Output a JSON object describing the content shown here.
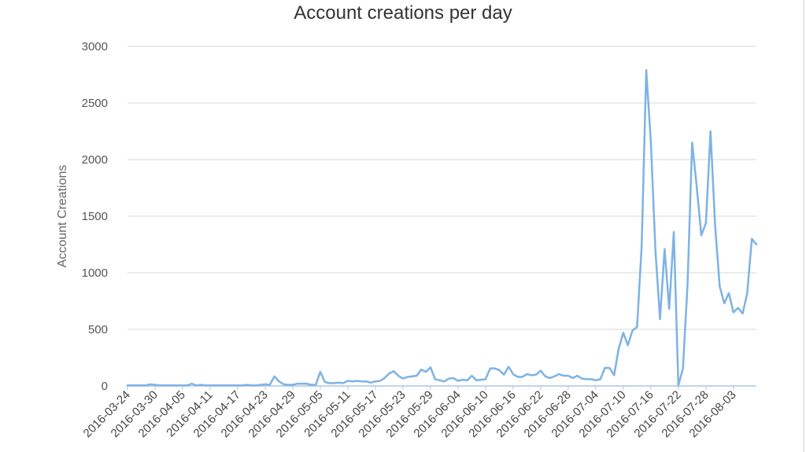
{
  "chart_data": {
    "type": "line",
    "title": "Account creations per day",
    "xlabel": "",
    "ylabel": "Account Creations",
    "ylim": [
      0,
      3000
    ],
    "yticks": [
      "0",
      "500",
      "1000",
      "1500",
      "2000",
      "2500",
      "3000"
    ],
    "xticks": [
      "2016-03-24",
      "2016-03-30",
      "2016-04-05",
      "2016-04-11",
      "2016-04-17",
      "2016-04-23",
      "2016-04-29",
      "2016-05-05",
      "2016-05-11",
      "2016-05-17",
      "2016-05-23",
      "2016-05-29",
      "2016-06-04",
      "2016-06-10",
      "2016-06-16",
      "2016-06-22",
      "2016-06-28",
      "2016-07-04",
      "2016-07-10",
      "2016-07-16",
      "2016-07-22",
      "2016-07-28",
      "2016-08-03"
    ],
    "x_start": "2016-03-24",
    "grid": true,
    "color": "#7eb2e4",
    "series": [
      {
        "values": [
          5,
          5,
          5,
          5,
          5,
          15,
          10,
          5,
          5,
          5,
          5,
          5,
          5,
          5,
          20,
          5,
          10,
          5,
          5,
          5,
          5,
          5,
          5,
          5,
          5,
          5,
          10,
          5,
          5,
          10,
          15,
          10,
          85,
          40,
          15,
          10,
          10,
          20,
          20,
          20,
          10,
          10,
          125,
          35,
          25,
          25,
          30,
          25,
          45,
          40,
          45,
          40,
          40,
          30,
          40,
          45,
          70,
          110,
          130,
          90,
          65,
          80,
          85,
          90,
          145,
          125,
          165,
          60,
          50,
          40,
          65,
          70,
          45,
          55,
          50,
          90,
          50,
          55,
          60,
          155,
          155,
          140,
          100,
          170,
          105,
          80,
          80,
          105,
          95,
          100,
          135,
          85,
          70,
          85,
          105,
          90,
          90,
          70,
          90,
          65,
          60,
          60,
          50,
          60,
          160,
          160,
          95,
          330,
          470,
          360,
          490,
          520,
          1230,
          2790,
          2160,
          1200,
          590,
          1210,
          680,
          1360,
          5,
          155,
          900,
          2150,
          1760,
          1330,
          1440,
          2250,
          1420,
          880,
          730,
          820,
          650,
          690,
          640,
          820,
          1300,
          1250
        ]
      }
    ]
  }
}
